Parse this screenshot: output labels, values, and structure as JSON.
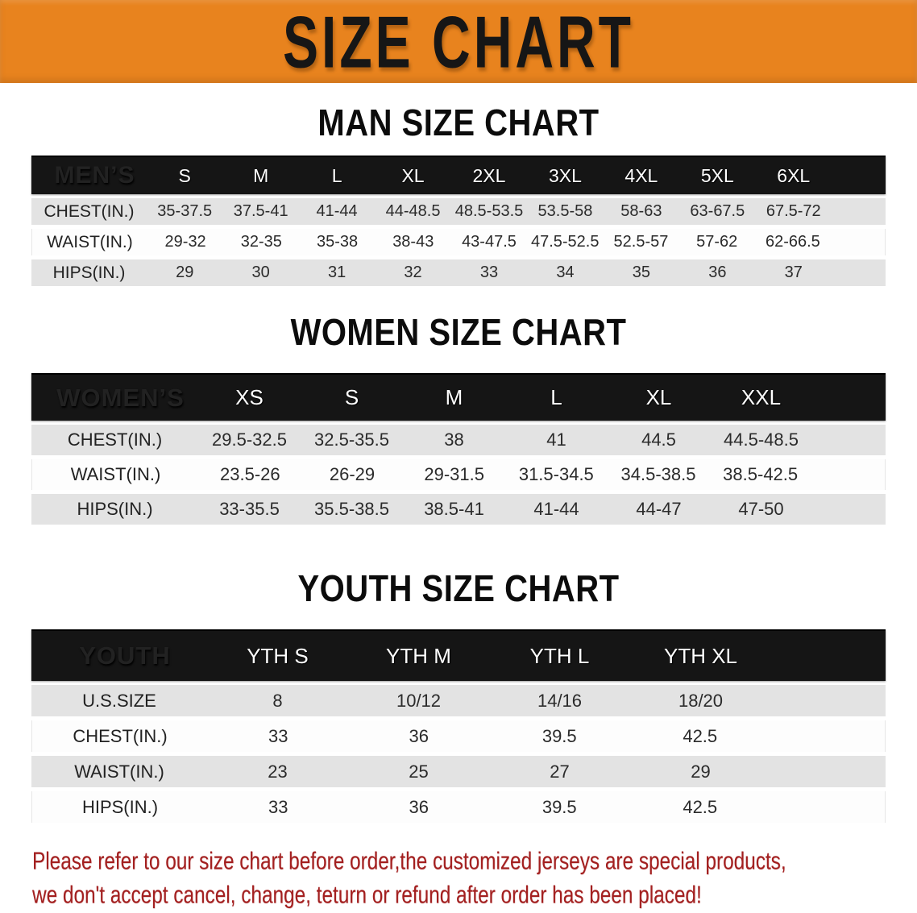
{
  "banner": {
    "title": "SIZE CHART"
  },
  "colors": {
    "banner_orange": "#E8831E",
    "header_bar_black": "#151515",
    "row_shade_gray": "#E3E3E3",
    "row_light_white": "#FDFDFD",
    "footer_red": "#A32020",
    "title_black": "#0C0C0C"
  },
  "chart_data": [
    {
      "type": "table",
      "title": "MAN SIZE CHART",
      "corner_label": "MEN’S",
      "columns": [
        "S",
        "M",
        "L",
        "XL",
        "2XL",
        "3XL",
        "4XL",
        "5XL",
        "6XL"
      ],
      "rows": [
        {
          "label": "CHEST(IN.)",
          "values": [
            "35-37.5",
            "37.5-41",
            "41-44",
            "44-48.5",
            "48.5-53.5",
            "53.5-58",
            "58-63",
            "63-67.5",
            "67.5-72"
          ]
        },
        {
          "label": "WAIST(IN.)",
          "values": [
            "29-32",
            "32-35",
            "35-38",
            "38-43",
            "43-47.5",
            "47.5-52.5",
            "52.5-57",
            "57-62",
            "62-66.5"
          ]
        },
        {
          "label": "HIPS(IN.)",
          "values": [
            "29",
            "30",
            "31",
            "32",
            "33",
            "34",
            "35",
            "36",
            "37"
          ]
        }
      ]
    },
    {
      "type": "table",
      "title": "WOMEN SIZE CHART",
      "corner_label": "WOMEN’S",
      "columns": [
        "XS",
        "S",
        "M",
        "L",
        "XL",
        "XXL"
      ],
      "rows": [
        {
          "label": "CHEST(IN.)",
          "values": [
            "29.5-32.5",
            "32.5-35.5",
            "38",
            "41",
            "44.5",
            "44.5-48.5"
          ]
        },
        {
          "label": "WAIST(IN.)",
          "values": [
            "23.5-26",
            "26-29",
            "29-31.5",
            "31.5-34.5",
            "34.5-38.5",
            "38.5-42.5"
          ]
        },
        {
          "label": "HIPS(IN.)",
          "values": [
            "33-35.5",
            "35.5-38.5",
            "38.5-41",
            "41-44",
            "44-47",
            "47-50"
          ]
        }
      ]
    },
    {
      "type": "table",
      "title": "YOUTH SIZE CHART",
      "corner_label": "YOUTH",
      "columns": [
        "YTH S",
        "YTH M",
        "YTH L",
        "YTH XL"
      ],
      "rows": [
        {
          "label": "U.S.SIZE",
          "values": [
            "8",
            "10/12",
            "14/16",
            "18/20"
          ]
        },
        {
          "label": "CHEST(IN.)",
          "values": [
            "33",
            "36",
            "39.5",
            "42.5"
          ]
        },
        {
          "label": "WAIST(IN.)",
          "values": [
            "23",
            "25",
            "27",
            "29"
          ]
        },
        {
          "label": "HIPS(IN.)",
          "values": [
            "33",
            "36",
            "39.5",
            "42.5"
          ]
        }
      ]
    }
  ],
  "footer": {
    "line1": "Please refer to our size chart before order,the customized jerseys are special products,",
    "line2": "we don't accept cancel, change, teturn or refund after order has been placed!"
  }
}
